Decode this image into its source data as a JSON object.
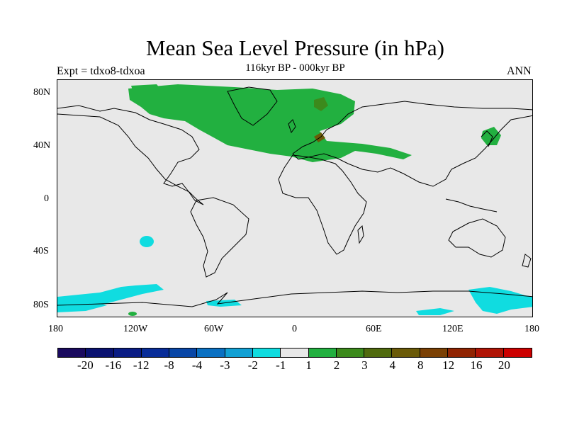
{
  "title": "Mean Sea Level Pressure (in hPa)",
  "subtitle": "116kyr BP - 000kyr BP",
  "experiment": "Expt = tdxo8-tdxoa",
  "season": "ANN",
  "lat_labels": [
    "80N",
    "40N",
    "0",
    "40S",
    "80S"
  ],
  "lon_labels": [
    "180",
    "120W",
    "60W",
    "0",
    "60E",
    "120E",
    "180"
  ],
  "colorbar": {
    "colors": [
      "#1a0a5e",
      "#0a1270",
      "#0a1c84",
      "#082c98",
      "#0846a6",
      "#0a70c2",
      "#12a0d4",
      "#10dce0",
      "#e8e8e8",
      "#22b040",
      "#3c8a1c",
      "#506a0e",
      "#6a5a08",
      "#7a4004",
      "#902402",
      "#b01406",
      "#cc0000"
    ],
    "labels": [
      "-20",
      "-16",
      "-12",
      "-8",
      "-4",
      "-3",
      "-2",
      "-1",
      "1",
      "2",
      "3",
      "4",
      "8",
      "12",
      "16",
      "20"
    ]
  },
  "palette": {
    "background": "#e8e8e8",
    "positive_light": "#22b040",
    "positive_mid": "#3c8a1c",
    "positive_dark": "#6a5a08",
    "negative_light": "#10dce0",
    "coastline": "#000000"
  }
}
